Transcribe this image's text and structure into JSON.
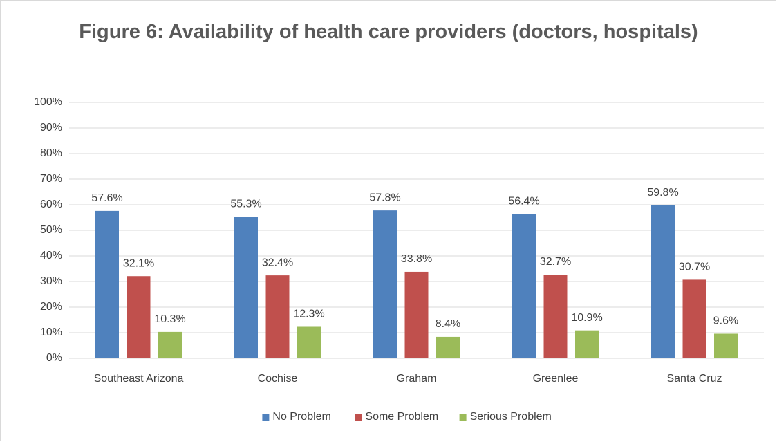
{
  "chart_data": {
    "type": "bar",
    "title": "Figure 6: Availability of health care providers (doctors, hospitals)",
    "categories": [
      "Southeast Arizona",
      "Cochise",
      "Graham",
      "Greenlee",
      "Santa Cruz"
    ],
    "series": [
      {
        "name": "No Problem",
        "color": "#4f81bd",
        "values": [
          57.6,
          55.3,
          57.8,
          56.4,
          59.8
        ],
        "value_labels": [
          "57.6%",
          "55.3%",
          "57.8%",
          "56.4%",
          "59.8%"
        ]
      },
      {
        "name": "Some Problem",
        "color": "#c0504d",
        "values": [
          32.1,
          32.4,
          33.8,
          32.7,
          30.7
        ],
        "value_labels": [
          "32.1%",
          "32.4%",
          "33.8%",
          "32.7%",
          "30.7%"
        ]
      },
      {
        "name": "Serious Problem",
        "color": "#9bbb59",
        "values": [
          10.3,
          12.3,
          8.4,
          10.9,
          9.6
        ],
        "value_labels": [
          "10.3%",
          "12.3%",
          "8.4%",
          "10.9%",
          "9.6%"
        ]
      }
    ],
    "ylim": [
      0,
      100
    ],
    "yticks": [
      {
        "value": 0,
        "label": "0%"
      },
      {
        "value": 10,
        "label": "10%"
      },
      {
        "value": 20,
        "label": "20%"
      },
      {
        "value": 30,
        "label": "30%"
      },
      {
        "value": 40,
        "label": "40%"
      },
      {
        "value": 50,
        "label": "50%"
      },
      {
        "value": 60,
        "label": "60%"
      },
      {
        "value": 70,
        "label": "70%"
      },
      {
        "value": 80,
        "label": "80%"
      },
      {
        "value": 90,
        "label": "90%"
      },
      {
        "value": 100,
        "label": "100%"
      }
    ],
    "grid": true,
    "legend": "bottom"
  }
}
